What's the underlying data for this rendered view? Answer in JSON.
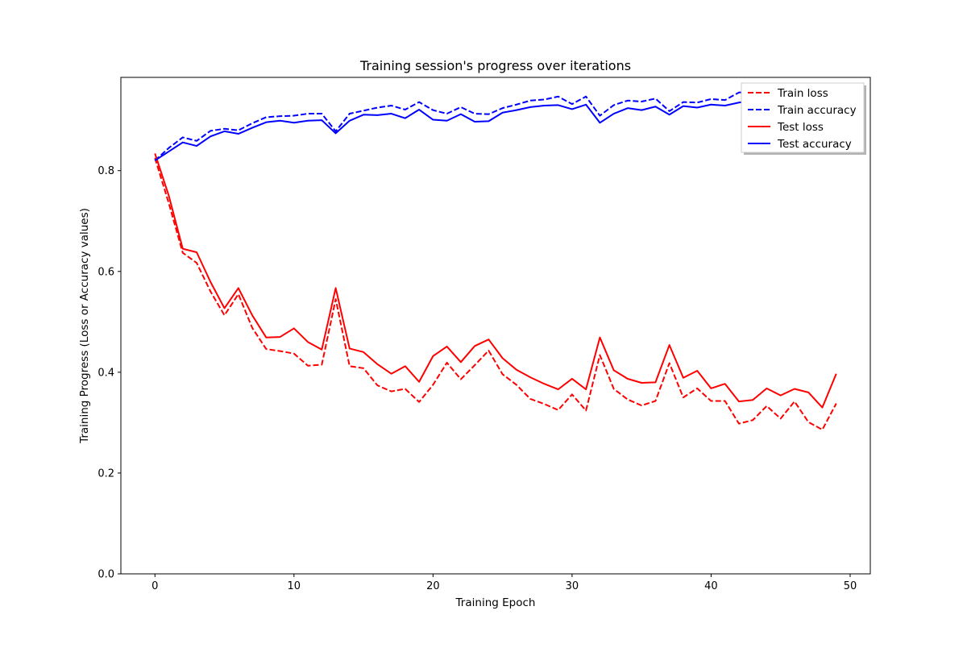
{
  "chart_data": {
    "type": "line",
    "title": "Training session's progress over iterations",
    "xlabel": "Training Epoch",
    "ylabel": "Training Progress (Loss or Accuracy values)",
    "xlim": [
      -2.45,
      51.45
    ],
    "ylim": [
      0.0,
      0.985
    ],
    "xticks": [
      0,
      10,
      20,
      30,
      40,
      50
    ],
    "yticks": [
      0.0,
      0.2,
      0.4,
      0.6,
      0.8
    ],
    "ytick_labels": [
      "0.0",
      "0.2",
      "0.4",
      "0.6",
      "0.8"
    ],
    "grid": false,
    "legend_position": "top-right",
    "x": [
      0,
      1,
      2,
      3,
      4,
      5,
      6,
      7,
      8,
      9,
      10,
      11,
      12,
      13,
      14,
      15,
      16,
      17,
      18,
      19,
      20,
      21,
      22,
      23,
      24,
      25,
      26,
      27,
      28,
      29,
      30,
      31,
      32,
      33,
      34,
      35,
      36,
      37,
      38,
      39,
      40,
      41,
      42,
      43,
      44,
      45,
      46,
      47,
      48,
      49
    ],
    "series": [
      {
        "name": "Train loss",
        "color": "#ff0000",
        "style": "dashed",
        "values": [
          0.825,
          0.735,
          0.637,
          0.617,
          0.56,
          0.513,
          0.555,
          0.488,
          0.446,
          0.442,
          0.437,
          0.413,
          0.415,
          0.545,
          0.412,
          0.408,
          0.374,
          0.362,
          0.367,
          0.341,
          0.375,
          0.419,
          0.386,
          0.414,
          0.443,
          0.396,
          0.375,
          0.347,
          0.337,
          0.325,
          0.356,
          0.324,
          0.434,
          0.367,
          0.346,
          0.334,
          0.343,
          0.418,
          0.35,
          0.368,
          0.343,
          0.343,
          0.298,
          0.305,
          0.333,
          0.308,
          0.342,
          0.301,
          0.286,
          0.338
        ]
      },
      {
        "name": "Train accuracy",
        "color": "#0000ff",
        "style": "dashed",
        "values": [
          0.82,
          0.845,
          0.866,
          0.859,
          0.879,
          0.883,
          0.88,
          0.894,
          0.906,
          0.908,
          0.909,
          0.913,
          0.913,
          0.878,
          0.913,
          0.919,
          0.925,
          0.929,
          0.921,
          0.936,
          0.92,
          0.913,
          0.926,
          0.913,
          0.912,
          0.924,
          0.931,
          0.939,
          0.941,
          0.947,
          0.932,
          0.947,
          0.909,
          0.93,
          0.939,
          0.937,
          0.943,
          0.918,
          0.936,
          0.935,
          0.942,
          0.94,
          0.955,
          0.957,
          0.948,
          0.952,
          0.941,
          0.953,
          0.954,
          0.941
        ]
      },
      {
        "name": "Test loss",
        "color": "#ff0000",
        "style": "solid",
        "values": [
          0.834,
          0.75,
          0.645,
          0.638,
          0.579,
          0.527,
          0.567,
          0.513,
          0.469,
          0.47,
          0.487,
          0.46,
          0.445,
          0.567,
          0.447,
          0.44,
          0.416,
          0.397,
          0.412,
          0.381,
          0.432,
          0.451,
          0.42,
          0.452,
          0.465,
          0.428,
          0.405,
          0.39,
          0.377,
          0.366,
          0.387,
          0.366,
          0.469,
          0.404,
          0.387,
          0.379,
          0.38,
          0.454,
          0.389,
          0.403,
          0.368,
          0.377,
          0.342,
          0.345,
          0.368,
          0.354,
          0.367,
          0.36,
          0.33,
          0.397
        ]
      },
      {
        "name": "Test accuracy",
        "color": "#0000ff",
        "style": "solid",
        "values": [
          0.82,
          0.838,
          0.856,
          0.849,
          0.868,
          0.878,
          0.873,
          0.885,
          0.896,
          0.899,
          0.895,
          0.899,
          0.9,
          0.874,
          0.899,
          0.911,
          0.91,
          0.913,
          0.904,
          0.921,
          0.901,
          0.899,
          0.912,
          0.897,
          0.898,
          0.915,
          0.92,
          0.926,
          0.929,
          0.93,
          0.922,
          0.931,
          0.895,
          0.913,
          0.924,
          0.92,
          0.927,
          0.911,
          0.928,
          0.925,
          0.931,
          0.929,
          0.935,
          0.939,
          0.934,
          0.936,
          0.93,
          0.937,
          0.938,
          0.93
        ]
      }
    ]
  }
}
